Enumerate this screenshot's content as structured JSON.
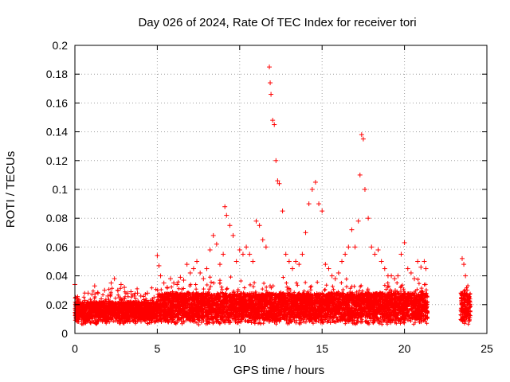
{
  "chart_data": {
    "type": "scatter",
    "title": "Day 026 of 2024, Rate Of TEC Index for receiver tori",
    "xlabel": "GPS time / hours",
    "ylabel": "ROTI / TECUs",
    "xlim": [
      0,
      25
    ],
    "ylim": [
      0,
      0.2
    ],
    "xticks": [
      0,
      5,
      10,
      15,
      20,
      25
    ],
    "xtick_labels": [
      "0",
      "5",
      "10",
      "15",
      "20",
      "25"
    ],
    "yticks": [
      0,
      0.02,
      0.04,
      0.06,
      0.08,
      0.1,
      0.12,
      0.14,
      0.16,
      0.18,
      0.2
    ],
    "ytick_labels": [
      "0",
      "0.02",
      "0.04",
      "0.06",
      "0.08",
      "0.1",
      "0.12",
      "0.14",
      "0.16",
      "0.18",
      "0.2"
    ],
    "grid": true,
    "marker": "+",
    "color": "#ff0000",
    "series": [
      {
        "points": [
          [
            0.0,
            0.034
          ],
          [
            0.05,
            0.025
          ],
          [
            0.1,
            0.02
          ],
          [
            0.2,
            0.016
          ],
          [
            0.3,
            0.012
          ],
          [
            0.4,
            0.018
          ],
          [
            0.5,
            0.02
          ],
          [
            0.6,
            0.023
          ],
          [
            0.8,
            0.028
          ],
          [
            1.0,
            0.022
          ],
          [
            1.2,
            0.033
          ],
          [
            1.4,
            0.028
          ],
          [
            1.6,
            0.024
          ],
          [
            1.8,
            0.03
          ],
          [
            2.0,
            0.026
          ],
          [
            2.2,
            0.035
          ],
          [
            2.4,
            0.038
          ],
          [
            2.6,
            0.03
          ],
          [
            2.8,
            0.034
          ],
          [
            3.0,
            0.032
          ],
          [
            3.2,
            0.028
          ],
          [
            3.4,
            0.029
          ],
          [
            3.6,
            0.026
          ],
          [
            3.8,
            0.028
          ],
          [
            4.0,
            0.026
          ],
          [
            4.2,
            0.022
          ],
          [
            4.4,
            0.028
          ],
          [
            4.6,
            0.02
          ],
          [
            4.8,
            0.025
          ],
          [
            5.0,
            0.054
          ],
          [
            5.1,
            0.047
          ],
          [
            5.2,
            0.04
          ],
          [
            5.4,
            0.035
          ],
          [
            5.6,
            0.032
          ],
          [
            5.8,
            0.038
          ],
          [
            6.0,
            0.035
          ],
          [
            6.2,
            0.034
          ],
          [
            6.4,
            0.039
          ],
          [
            6.6,
            0.037
          ],
          [
            6.8,
            0.048
          ],
          [
            7.0,
            0.042
          ],
          [
            7.2,
            0.045
          ],
          [
            7.4,
            0.05
          ],
          [
            7.6,
            0.042
          ],
          [
            7.8,
            0.038
          ],
          [
            8.0,
            0.045
          ],
          [
            8.2,
            0.058
          ],
          [
            8.4,
            0.068
          ],
          [
            8.6,
            0.062
          ],
          [
            8.8,
            0.048
          ],
          [
            9.0,
            0.055
          ],
          [
            9.1,
            0.088
          ],
          [
            9.2,
            0.082
          ],
          [
            9.4,
            0.075
          ],
          [
            9.6,
            0.068
          ],
          [
            9.8,
            0.05
          ],
          [
            10.0,
            0.058
          ],
          [
            10.2,
            0.055
          ],
          [
            10.4,
            0.06
          ],
          [
            10.6,
            0.055
          ],
          [
            10.8,
            0.05
          ],
          [
            11.0,
            0.078
          ],
          [
            11.2,
            0.075
          ],
          [
            11.4,
            0.065
          ],
          [
            11.6,
            0.06
          ],
          [
            11.8,
            0.185
          ],
          [
            11.85,
            0.174
          ],
          [
            11.9,
            0.166
          ],
          [
            12.0,
            0.148
          ],
          [
            12.1,
            0.145
          ],
          [
            12.2,
            0.12
          ],
          [
            12.3,
            0.106
          ],
          [
            12.4,
            0.104
          ],
          [
            12.6,
            0.085
          ],
          [
            12.8,
            0.055
          ],
          [
            13.0,
            0.05
          ],
          [
            13.2,
            0.045
          ],
          [
            13.4,
            0.05
          ],
          [
            13.6,
            0.048
          ],
          [
            13.8,
            0.055
          ],
          [
            14.0,
            0.07
          ],
          [
            14.2,
            0.09
          ],
          [
            14.4,
            0.1
          ],
          [
            14.6,
            0.105
          ],
          [
            14.8,
            0.09
          ],
          [
            15.0,
            0.085
          ],
          [
            15.2,
            0.048
          ],
          [
            15.4,
            0.045
          ],
          [
            15.6,
            0.04
          ],
          [
            15.8,
            0.038
          ],
          [
            16.0,
            0.042
          ],
          [
            16.2,
            0.05
          ],
          [
            16.4,
            0.055
          ],
          [
            16.6,
            0.06
          ],
          [
            16.8,
            0.072
          ],
          [
            17.0,
            0.06
          ],
          [
            17.2,
            0.078
          ],
          [
            17.3,
            0.11
          ],
          [
            17.4,
            0.138
          ],
          [
            17.5,
            0.135
          ],
          [
            17.6,
            0.1
          ],
          [
            17.8,
            0.08
          ],
          [
            18.0,
            0.06
          ],
          [
            18.2,
            0.055
          ],
          [
            18.4,
            0.058
          ],
          [
            18.6,
            0.05
          ],
          [
            18.8,
            0.045
          ],
          [
            19.0,
            0.04
          ],
          [
            19.2,
            0.04
          ],
          [
            19.4,
            0.038
          ],
          [
            19.6,
            0.04
          ],
          [
            19.8,
            0.055
          ],
          [
            20.0,
            0.063
          ],
          [
            20.2,
            0.045
          ],
          [
            20.4,
            0.042
          ],
          [
            20.6,
            0.038
          ],
          [
            20.8,
            0.05
          ],
          [
            21.0,
            0.046
          ],
          [
            21.2,
            0.05
          ],
          [
            21.3,
            0.045
          ],
          [
            23.5,
            0.052
          ],
          [
            23.6,
            0.048
          ],
          [
            23.7,
            0.04
          ],
          [
            23.8,
            0.03
          ],
          [
            23.9,
            0.025
          ]
        ]
      }
    ]
  }
}
